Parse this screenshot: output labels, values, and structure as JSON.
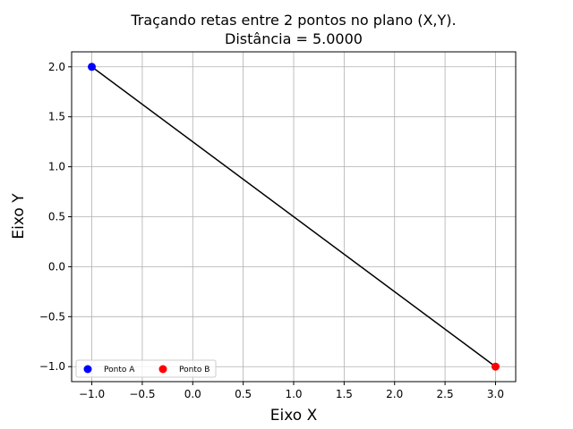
{
  "chart_data": {
    "type": "scatter",
    "title": "Traçando retas entre 2 pontos no plano (X,Y).",
    "subtitle": "Distância = 5.0000",
    "xlabel": "Eixo X",
    "ylabel": "Eixo Y",
    "xlim": [
      -1.2,
      3.2
    ],
    "ylim": [
      -1.15,
      2.15
    ],
    "xticks": [
      -1.0,
      -0.5,
      0.0,
      0.5,
      1.0,
      1.5,
      2.0,
      2.5,
      3.0
    ],
    "xtick_labels": [
      "−1.0",
      "−0.5",
      "0.0",
      "0.5",
      "1.0",
      "1.5",
      "2.0",
      "2.5",
      "3.0"
    ],
    "yticks": [
      -1.0,
      -0.5,
      0.0,
      0.5,
      1.0,
      1.5,
      2.0
    ],
    "ytick_labels": [
      "−1.0",
      "−0.5",
      "0.0",
      "0.5",
      "1.0",
      "1.5",
      "2.0"
    ],
    "grid": true,
    "legend_position": "lower-left",
    "series": [
      {
        "name": "Ponto A",
        "x": [
          -1.0
        ],
        "y": [
          2.0
        ],
        "color": "#0000ff"
      },
      {
        "name": "Ponto B",
        "x": [
          3.0
        ],
        "y": [
          -1.0
        ],
        "color": "#ff0000"
      }
    ],
    "line": {
      "x": [
        -1.0,
        3.0
      ],
      "y": [
        2.0,
        -1.0
      ],
      "color": "#000000"
    }
  }
}
